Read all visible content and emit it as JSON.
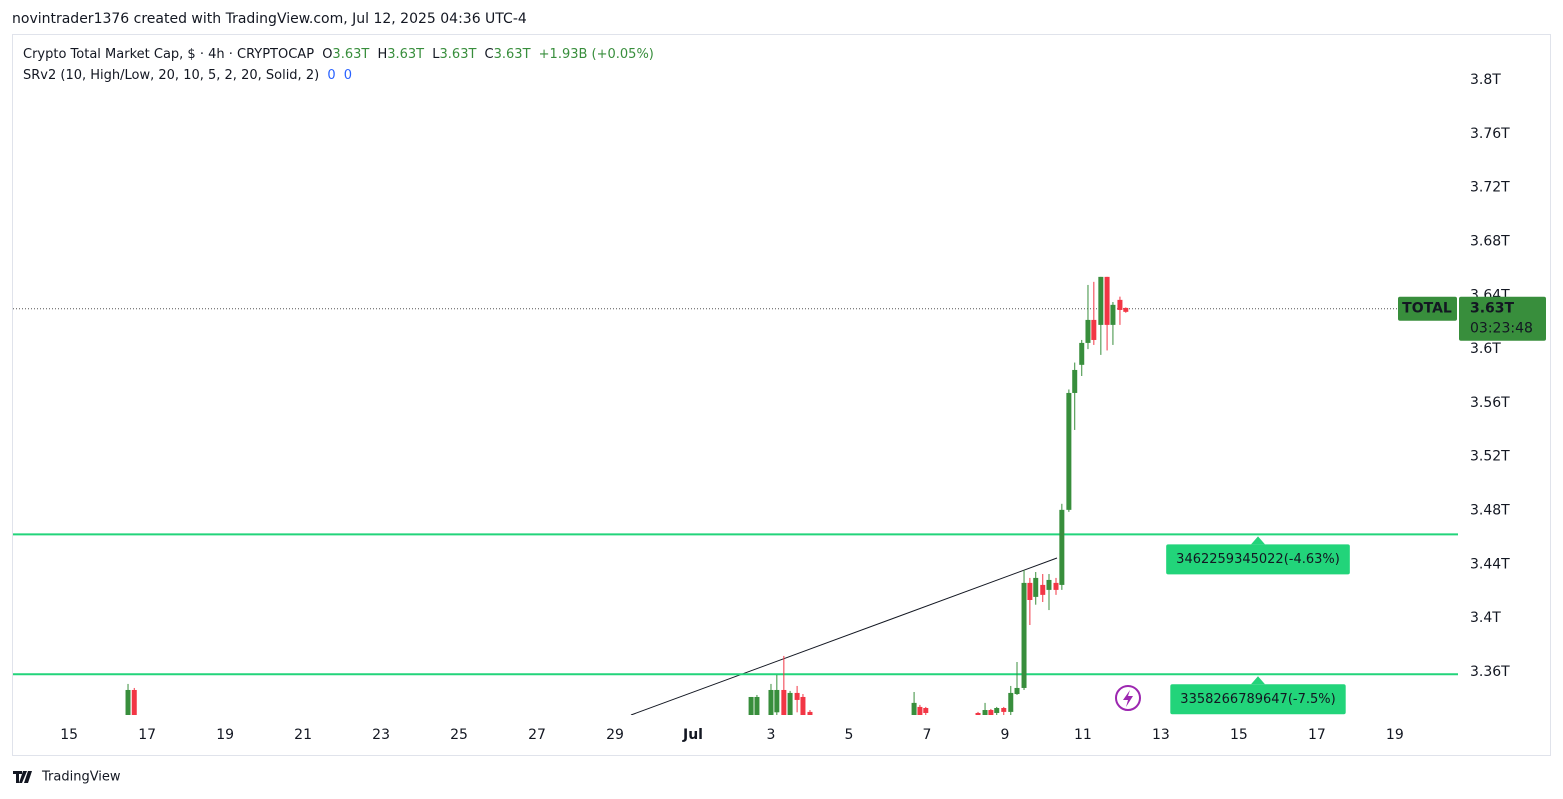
{
  "header": "novintrader1376 created with TradingView.com, Jul 12, 2025 04:36 UTC-4",
  "legend": {
    "symbol": "Crypto Total Market Cap, $ · 4h · CRYPTOCAP",
    "o_label": "O",
    "o_value": "3.63T",
    "h_label": "H",
    "h_value": "3.63T",
    "l_label": "L",
    "l_value": "3.63T",
    "c_label": "C",
    "c_value": "3.63T",
    "change": "+1.93B (+0.05%)"
  },
  "indicator": {
    "name": "SRv2 (10, High/Low, 20, 10, 5, 2, 20, Solid, 2)",
    "value_1": "0",
    "value_2": "0"
  },
  "footer": "TradingView",
  "chart_data": {
    "type": "candlestick",
    "up_color": "#388e3c",
    "down_color": "#f23645",
    "xlim": [
      13.56,
      50.62
    ],
    "xticks": [
      {
        "value": 15,
        "label": "15"
      },
      {
        "value": 17,
        "label": "17"
      },
      {
        "value": 19,
        "label": "19"
      },
      {
        "value": 21,
        "label": "21"
      },
      {
        "value": 23,
        "label": "23"
      },
      {
        "value": 25,
        "label": "25"
      },
      {
        "value": 27,
        "label": "27"
      },
      {
        "value": 29,
        "label": "29"
      },
      {
        "value": 31,
        "label": "Jul"
      },
      {
        "value": 33,
        "label": "3"
      },
      {
        "value": 35,
        "label": "5"
      },
      {
        "value": 37,
        "label": "7"
      },
      {
        "value": 39,
        "label": "9"
      },
      {
        "value": 41,
        "label": "11"
      },
      {
        "value": 43,
        "label": "13"
      },
      {
        "value": 45,
        "label": "15"
      },
      {
        "value": 47,
        "label": "17"
      },
      {
        "value": 49,
        "label": "19"
      }
    ],
    "ylim": [
      3.328,
      3.8335
    ],
    "yticks": [
      {
        "value": 3.36,
        "label": "3.36T"
      },
      {
        "value": 3.4,
        "label": "3.4T"
      },
      {
        "value": 3.44,
        "label": "3.44T"
      },
      {
        "value": 3.48,
        "label": "3.48T"
      },
      {
        "value": 3.52,
        "label": "3.52T"
      },
      {
        "value": 3.56,
        "label": "3.56T"
      },
      {
        "value": 3.6,
        "label": "3.6T"
      },
      {
        "value": 3.64,
        "label": "3.64T"
      },
      {
        "value": 3.68,
        "label": "3.68T"
      },
      {
        "value": 3.72,
        "label": "3.72T"
      },
      {
        "value": 3.76,
        "label": "3.76T"
      },
      {
        "value": 3.8,
        "label": "3.8T"
      }
    ],
    "x": [
      16.51,
      16.67,
      32.49,
      32.64,
      33.0,
      33.15,
      33.33,
      33.49,
      33.67,
      33.82,
      34.0,
      36.67,
      36.82,
      36.97,
      38.31,
      38.49,
      38.64,
      38.79,
      38.97,
      39.15,
      39.31,
      39.49,
      39.64,
      39.79,
      39.97,
      40.13,
      40.31,
      40.46,
      40.64,
      40.79,
      40.97,
      41.13,
      41.28,
      41.46,
      41.62,
      41.77,
      41.95,
      42.1
    ],
    "open": [
      3.32,
      3.3466,
      3.32,
      3.32,
      3.32,
      3.33,
      3.3466,
      3.32,
      3.3444,
      3.3414,
      3.3303,
      3.32,
      3.334,
      3.3332,
      3.3295,
      3.32,
      3.3317,
      3.3295,
      3.3332,
      3.3303,
      3.3436,
      3.3481,
      3.4262,
      3.4158,
      3.4247,
      3.421,
      3.4262,
      3.4247,
      3.4805,
      3.5674,
      3.5883,
      3.6046,
      3.6217,
      3.618,
      3.6537,
      3.618,
      3.6366,
      3.6306
    ],
    "high": [
      3.3511,
      3.3481,
      3.3414,
      3.3429,
      3.3511,
      3.3578,
      3.3719,
      3.3459,
      3.3496,
      3.3436,
      3.3317,
      3.3451,
      3.3355,
      3.334,
      3.3303,
      3.337,
      3.3325,
      3.334,
      3.334,
      3.3496,
      3.3674,
      3.4358,
      3.4299,
      3.4343,
      3.4328,
      3.4328,
      3.4299,
      3.485,
      3.57,
      3.59,
      3.6068,
      3.6477,
      3.65,
      3.6537,
      3.6537,
      3.635,
      3.639,
      3.631
    ],
    "low": [
      3.31,
      3.31,
      3.31,
      3.31,
      3.31,
      3.32,
      3.31,
      3.31,
      3.33,
      3.31,
      3.31,
      3.31,
      3.31,
      3.32,
      3.31,
      3.31,
      3.31,
      3.32,
      3.32,
      3.32,
      3.3429,
      3.3466,
      3.3949,
      3.41,
      3.412,
      3.406,
      3.4173,
      3.421,
      3.479,
      3.5399,
      3.58,
      3.6,
      3.6031,
      3.5957,
      3.599,
      3.6031,
      3.618,
      3.627
    ],
    "close": [
      3.3466,
      3.32,
      3.3414,
      3.3414,
      3.3466,
      3.3466,
      3.32,
      3.3444,
      3.3392,
      3.32,
      3.32,
      3.337,
      3.32,
      3.3295,
      3.32,
      3.3317,
      3.32,
      3.3332,
      3.3303,
      3.3444,
      3.3481,
      3.4262,
      3.4135,
      3.4299,
      3.4173,
      3.4284,
      3.421,
      3.4805,
      3.5674,
      3.5845,
      3.6046,
      3.6217,
      3.6068,
      3.6537,
      3.618,
      3.6329,
      3.6291,
      3.6277
    ],
    "levels": [
      {
        "value": 3.462259345022,
        "label": "3462259345022(-4.63%)",
        "color": "#22d47a"
      },
      {
        "value": 3.358266789647,
        "label": "3358266789647(-7.5%)",
        "color": "#22d47a"
      }
    ],
    "last_price": {
      "name": "TOTAL",
      "value": 3.63,
      "label": "3.63T",
      "countdown": "03:23:48",
      "color": "#388e3c"
    }
  }
}
